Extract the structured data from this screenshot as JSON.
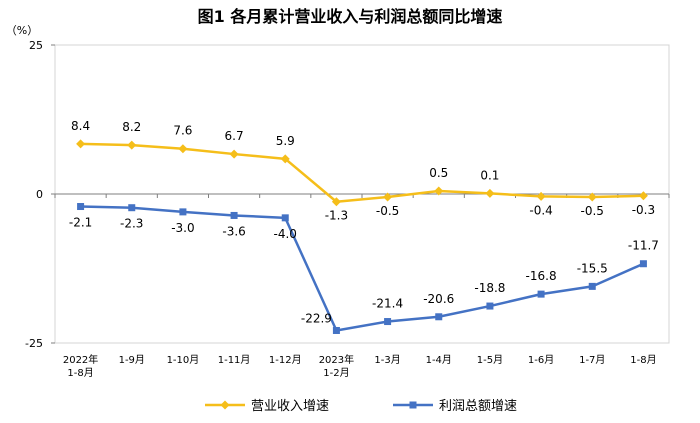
{
  "chart_data": {
    "type": "line",
    "title": "图1  各月累计营业收入与利润总额同比增速",
    "y_unit": "（%）",
    "ylim": [
      -25,
      25
    ],
    "y_ticks": [
      25,
      0,
      -25
    ],
    "grid": false,
    "legend_position": "bottom",
    "categories": [
      [
        "2022年",
        "1-8月"
      ],
      [
        "1-9月"
      ],
      [
        "1-10月"
      ],
      [
        "1-11月"
      ],
      [
        "1-12月"
      ],
      [
        "2023年",
        "1-2月"
      ],
      [
        "1-3月"
      ],
      [
        "1-4月"
      ],
      [
        "1-5月"
      ],
      [
        "1-6月"
      ],
      [
        "1-7月"
      ],
      [
        "1-8月"
      ]
    ],
    "series": [
      {
        "name": "营业收入增速",
        "color": "#F5BE1A",
        "marker": "diamond",
        "values": [
          8.4,
          8.2,
          7.6,
          6.7,
          5.9,
          -1.3,
          -0.5,
          0.5,
          0.1,
          -0.4,
          -0.5,
          -0.3
        ],
        "labels": [
          "8.4",
          "8.2",
          "7.6",
          "6.7",
          "5.9",
          "-1.3",
          "-0.5",
          "0.5",
          "0.1",
          "-0.4",
          "-0.5",
          "-0.3"
        ]
      },
      {
        "name": "利润总额增速",
        "color": "#4472C4",
        "marker": "square",
        "values": [
          -2.1,
          -2.3,
          -3.0,
          -3.6,
          -4.0,
          -22.9,
          -21.4,
          -20.6,
          -18.8,
          -16.8,
          -15.5,
          -11.7
        ],
        "labels": [
          "-2.1",
          "-2.3",
          "-3.0",
          "-3.6",
          "-4.0",
          "-22.9",
          "-21.4",
          "-20.6",
          "-18.8",
          "-16.8",
          "-15.5",
          "-11.7"
        ]
      }
    ]
  }
}
